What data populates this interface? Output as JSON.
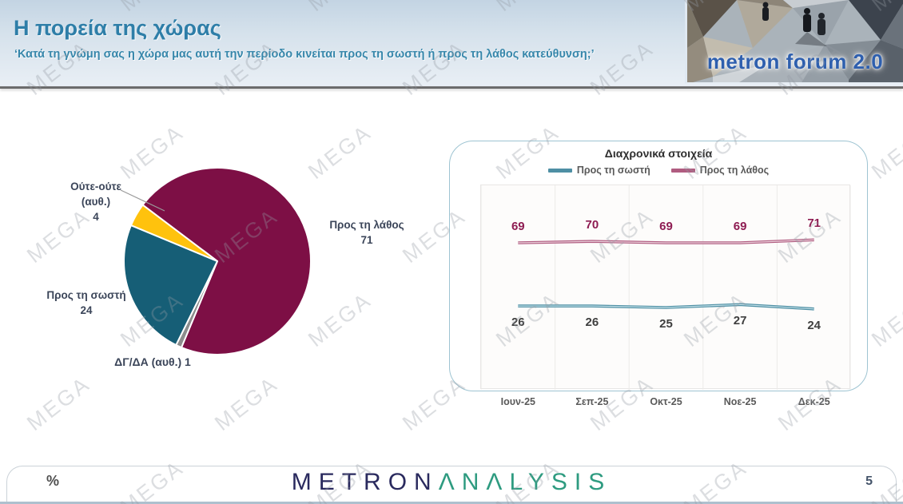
{
  "header": {
    "title": "Η πορεία της χώρας",
    "subtitle": "‘Κατά τη γνώμη σας η χώρα μας αυτή την περίοδο κινείται προς τη σωστή ή προς τη λάθος κατεύθυνση;’",
    "logo_text": "metron forum 2.0"
  },
  "watermark_text": "MEGA",
  "pie_labels": {
    "wrong_name": "Προς τη λάθος",
    "wrong_value": "71",
    "right_name": "Προς τη σωστή",
    "right_value": "24",
    "neither_line1": "Ούτε-ούτε",
    "neither_line2": "(αυθ.)",
    "neither_value": "4",
    "dk_full": "ΔΓ/ΔΑ (αυθ.) 1"
  },
  "panel": {
    "title": "Διαχρονικά στοιχεία"
  },
  "footer": {
    "percent_label": "%",
    "brand_metron": "METRON",
    "brand_analysis": "ΛNΛLYSIS",
    "page_number": "5"
  },
  "chart_data": [
    {
      "type": "pie",
      "title": "Η πορεία της χώρας",
      "labels": [
        "Προς τη λάθος",
        "ΔΓ/ΔΑ (αυθ.)",
        "Προς τη σωστή",
        "Ούτε-ούτε (αυθ.)"
      ],
      "values": [
        71,
        1,
        24,
        4
      ],
      "colors": [
        "#7d0f45",
        "#8c8c8c",
        "#165e76",
        "#ffc20d"
      ],
      "start_angle_deg": -53,
      "separator_color": "#ffffff"
    },
    {
      "type": "line",
      "title": "Διαχρονικά στοιχεία",
      "categories": [
        "Ιουν-25",
        "Σεπ-25",
        "Οκτ-25",
        "Νοε-25",
        "Δεκ-25"
      ],
      "series": [
        {
          "name": "Προς τη σωστή",
          "values": [
            26,
            26,
            25,
            27,
            24
          ],
          "color": "#4e8fa4",
          "inner_color": "#c3e0e8",
          "value_label_color": "#3f3f3f",
          "label_side": "below"
        },
        {
          "name": "Προς τη λάθος",
          "values": [
            69,
            70,
            69,
            69,
            71
          ],
          "color": "#b05c80",
          "inner_color": "#ead0db",
          "value_label_color": "#8e1c52",
          "label_side": "above"
        }
      ],
      "ylim": [
        0,
        100
      ],
      "grid": "vertical-only",
      "legend_position": "top"
    }
  ]
}
